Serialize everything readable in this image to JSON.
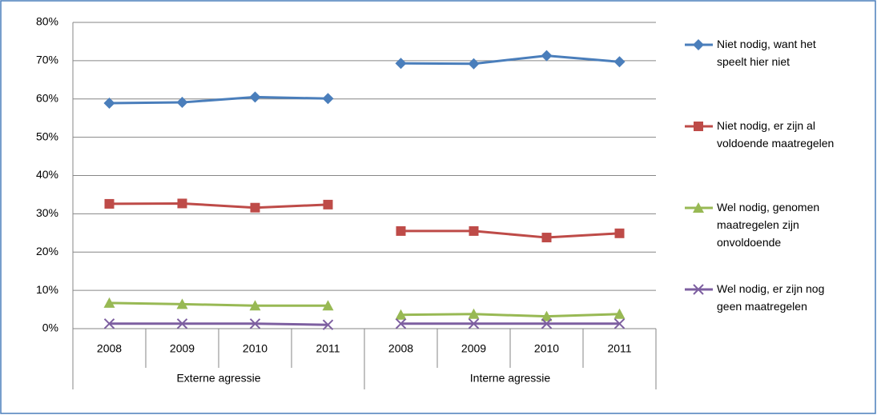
{
  "chart_data": {
    "type": "line",
    "groups": [
      {
        "name": "Externe agressie",
        "categories": [
          "2008",
          "2009",
          "2010",
          "2011"
        ]
      },
      {
        "name": "Interne agressie",
        "categories": [
          "2008",
          "2009",
          "2010",
          "2011"
        ]
      }
    ],
    "series": [
      {
        "name": "Niet nodig, want het speelt hier niet",
        "color": "#4a7ebb",
        "marker": "diamond",
        "values": [
          [
            58.9,
            59.1,
            60.5,
            60.1
          ],
          [
            69.3,
            69.2,
            71.3,
            69.7
          ]
        ]
      },
      {
        "name": "Niet nodig, er zijn al voldoende maatregelen",
        "color": "#be4b48",
        "marker": "square",
        "values": [
          [
            32.6,
            32.7,
            31.6,
            32.4
          ],
          [
            25.5,
            25.5,
            23.8,
            24.9
          ]
        ]
      },
      {
        "name": "Wel nodig, genomen maatregelen zijn onvoldoende",
        "color": "#98b954",
        "marker": "triangle",
        "values": [
          [
            6.7,
            6.4,
            6.0,
            6.0
          ],
          [
            3.6,
            3.8,
            3.2,
            3.8
          ]
        ]
      },
      {
        "name": "Wel nodig, er zijn nog geen maatregelen",
        "color": "#7d5fa0",
        "marker": "x",
        "values": [
          [
            1.3,
            1.3,
            1.3,
            1.0
          ],
          [
            1.3,
            1.3,
            1.3,
            1.3
          ]
        ]
      }
    ],
    "ylim": [
      0,
      80
    ],
    "yticks": [
      {
        "value": 0,
        "label": "0%"
      },
      {
        "value": 10,
        "label": "10%"
      },
      {
        "value": 20,
        "label": "20%"
      },
      {
        "value": 30,
        "label": "30%"
      },
      {
        "value": 40,
        "label": "40%"
      },
      {
        "value": 50,
        "label": "50%"
      },
      {
        "value": 60,
        "label": "60%"
      },
      {
        "value": 70,
        "label": "70%"
      },
      {
        "value": 80,
        "label": "80%"
      }
    ],
    "grid": true,
    "legend": "right"
  }
}
